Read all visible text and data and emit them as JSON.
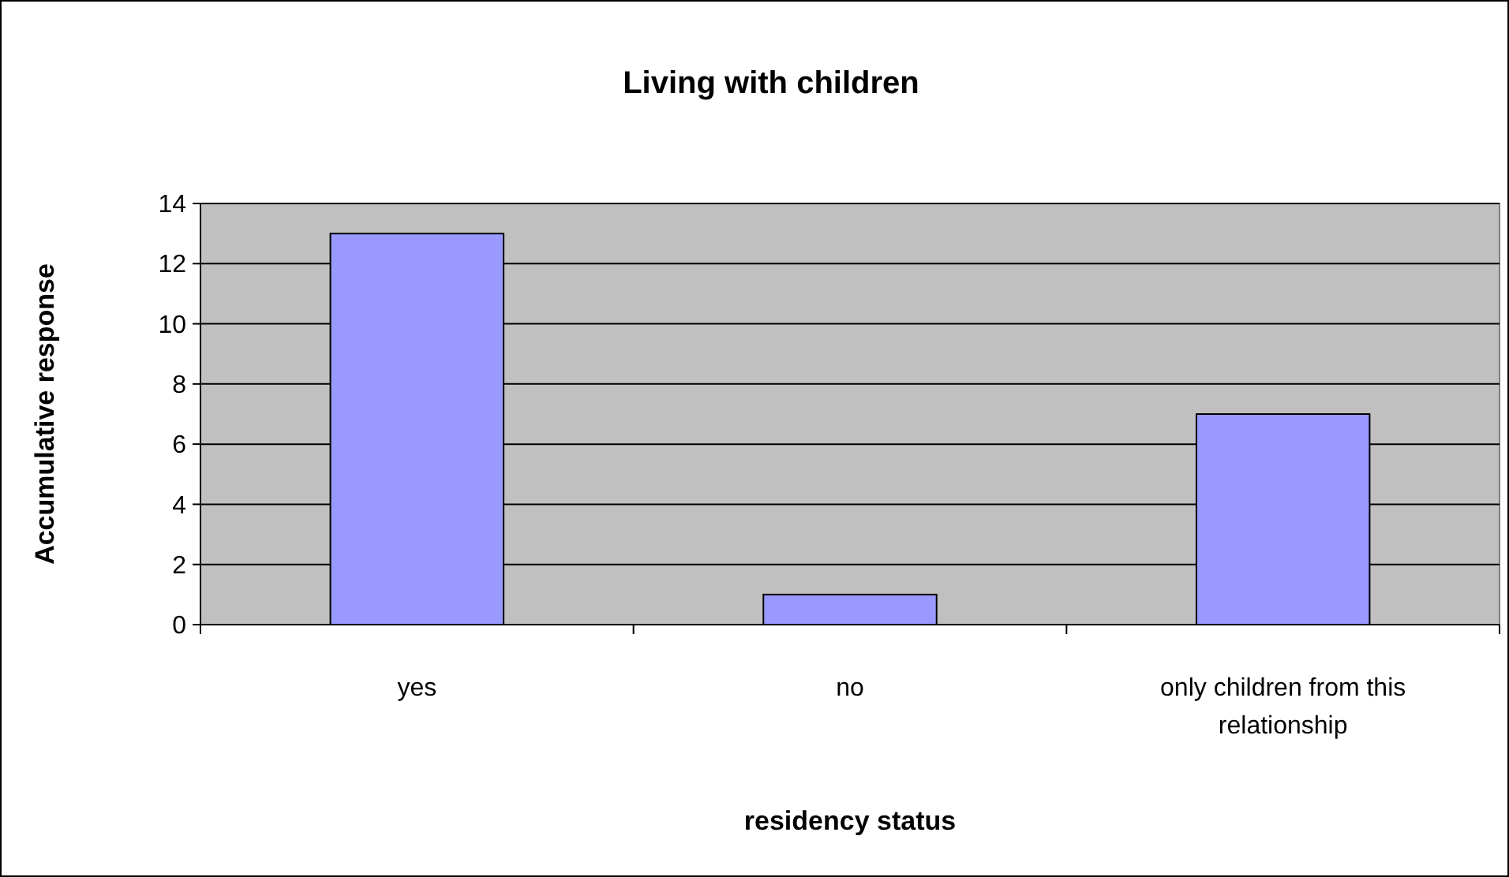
{
  "chart_data": {
    "type": "bar",
    "title": "Living with children",
    "xlabel": "residency status",
    "ylabel": "Accumulative response",
    "categories": [
      "yes",
      "no",
      "only children from this relationship"
    ],
    "values": [
      13,
      1,
      7
    ],
    "color": "#9999ff",
    "ylim": [
      0,
      14
    ],
    "yticks": [
      0,
      2,
      4,
      6,
      8,
      10,
      12,
      14
    ],
    "grid": "y"
  }
}
